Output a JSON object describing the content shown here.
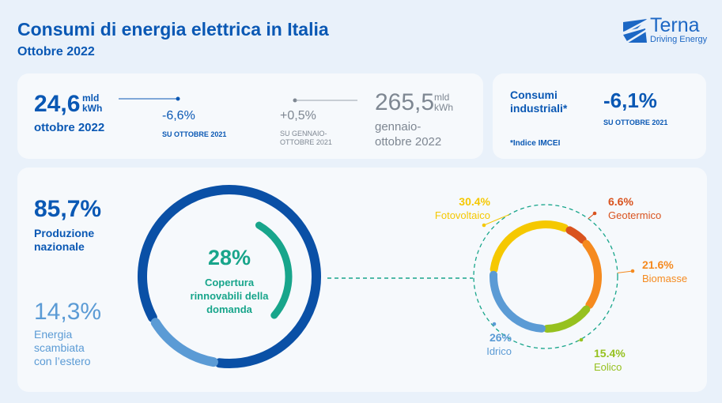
{
  "header": {
    "title": "Consumi di energia elettrica in Italia",
    "subtitle": "Ottobre 2022",
    "logo_name": "Terna",
    "logo_tagline": "Driving Energy"
  },
  "monthly": {
    "value": "24,6",
    "unit_top": "mld",
    "unit_bottom": "kWh",
    "period": "ottobre 2022",
    "change": "-6,6%",
    "change_ref": "SU OTTOBRE 2021"
  },
  "cumulative": {
    "value": "265,5",
    "unit_top": "mld",
    "unit_bottom": "kWh",
    "period_line1": "gennaio-",
    "period_line2": "ottobre 2022",
    "change": "+0,5%",
    "change_ref_line1": "SU GENNAIO-",
    "change_ref_line2": "OTTOBRE 2021"
  },
  "industrial": {
    "label_line1": "Consumi",
    "label_line2": "industriali*",
    "value": "-6,1%",
    "ref": "SU OTTOBRE 2021",
    "note": "*Indice IMCEI"
  },
  "supply": {
    "national_pct": "85,7%",
    "national_label_line1": "Produzione",
    "national_label_line2": "nazionale",
    "foreign_pct": "14,3%",
    "foreign_label_line1": "Energia",
    "foreign_label_line2": "scambiata",
    "foreign_label_line3": "con l’estero",
    "renew_pct": "28%",
    "renew_label_line1": "Copertura",
    "renew_label_line2": "rinnovabili della",
    "renew_label_line3": "domanda"
  },
  "colors": {
    "national": "#0a50a6",
    "foreign": "#5b9bd5",
    "renewable": "#18a58b",
    "fotovoltaico": "#f5c800",
    "geotermico": "#d9531e",
    "biomasse": "#f58a1f",
    "eolico": "#96c11f",
    "idrico": "#5b9bd5"
  },
  "chart_data": [
    {
      "type": "pie",
      "categories": [
        "Produzione nazionale",
        "Energia scambiata con l’estero"
      ],
      "values": [
        85.7,
        14.3
      ],
      "inner_value": 28,
      "inner_label": "Copertura rinnovabili della domanda"
    },
    {
      "type": "pie",
      "categories": [
        "Fotovoltaico",
        "Geotermico",
        "Biomasse",
        "Eolico",
        "Idrico"
      ],
      "values": [
        30.4,
        6.6,
        21.6,
        15.4,
        26
      ],
      "labels": [
        {
          "pct": "30.4%",
          "name": "Fotovoltaico"
        },
        {
          "pct": "6.6%",
          "name": "Geotermico"
        },
        {
          "pct": "21.6%",
          "name": "Biomasse"
        },
        {
          "pct": "15.4%",
          "name": "Eolico"
        },
        {
          "pct": "26%",
          "name": "Idrico"
        }
      ]
    }
  ]
}
